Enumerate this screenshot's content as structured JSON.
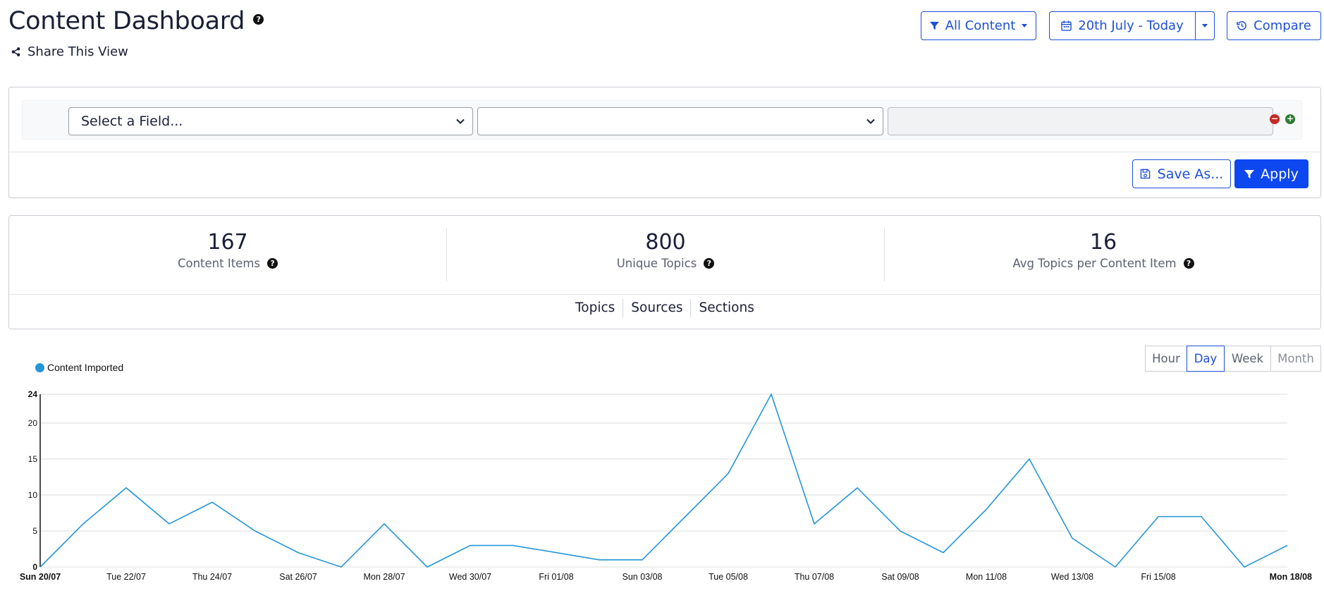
{
  "header": {
    "title": "Content Dashboard",
    "share_label": "Share This View",
    "all_content_label": "All Content",
    "date_range_label": "20th July - Today",
    "compare_label": "Compare"
  },
  "filters": {
    "field_select_value": "Select a Field...",
    "operator_select_value": "",
    "value_input": "",
    "save_as_label": "Save As...",
    "apply_label": "Apply"
  },
  "stats": [
    {
      "value": "167",
      "label": "Content Items"
    },
    {
      "value": "800",
      "label": "Unique Topics"
    },
    {
      "value": "16",
      "label": "Avg Topics per Content Item"
    }
  ],
  "tabs": [
    "Topics",
    "Sources",
    "Sections"
  ],
  "granularity": {
    "options": [
      "Hour",
      "Day",
      "Week",
      "Month"
    ],
    "selected": "Day"
  },
  "colors": {
    "accent": "#1d4fd8",
    "series": "#2596d6",
    "remove": "#c62828",
    "add": "#2e7d32"
  },
  "icons": {
    "help": "question-circle-icon",
    "share": "share-icon",
    "filter": "filter-icon",
    "calendar": "calendar-icon",
    "compare": "history-icon",
    "save": "floppy-disk-icon"
  },
  "chart_data": {
    "type": "line",
    "legend": "top-left",
    "grid": true,
    "ylim": [
      0,
      24
    ],
    "yticks": [
      0,
      5,
      10,
      15,
      20,
      24
    ],
    "x_tick_labels": [
      "Sun 20/07",
      "Tue 22/07",
      "Thu 24/07",
      "Sat 26/07",
      "Mon 28/07",
      "Wed 30/07",
      "Fri 01/08",
      "Sun 03/08",
      "Tue 05/08",
      "Thu 07/08",
      "Sat 09/08",
      "Mon 11/08",
      "Wed 13/08",
      "Fri 15/08",
      "Mon 18/08"
    ],
    "x": [
      "20/07",
      "21/07",
      "22/07",
      "23/07",
      "24/07",
      "25/07",
      "26/07",
      "27/07",
      "28/07",
      "29/07",
      "30/07",
      "31/07",
      "01/08",
      "02/08",
      "03/08",
      "04/08",
      "05/08",
      "06/08",
      "07/08",
      "08/08",
      "09/08",
      "10/08",
      "11/08",
      "12/08",
      "13/08",
      "14/08",
      "15/08",
      "16/08",
      "17/08",
      "18/08"
    ],
    "series": [
      {
        "name": "Content Imported",
        "values": [
          0,
          6,
          11,
          6,
          9,
          5,
          2,
          0,
          6,
          0,
          3,
          3,
          2,
          1,
          1,
          7,
          13,
          24,
          6,
          11,
          5,
          2,
          8,
          15,
          4,
          0,
          7,
          7,
          0,
          3
        ]
      }
    ]
  }
}
